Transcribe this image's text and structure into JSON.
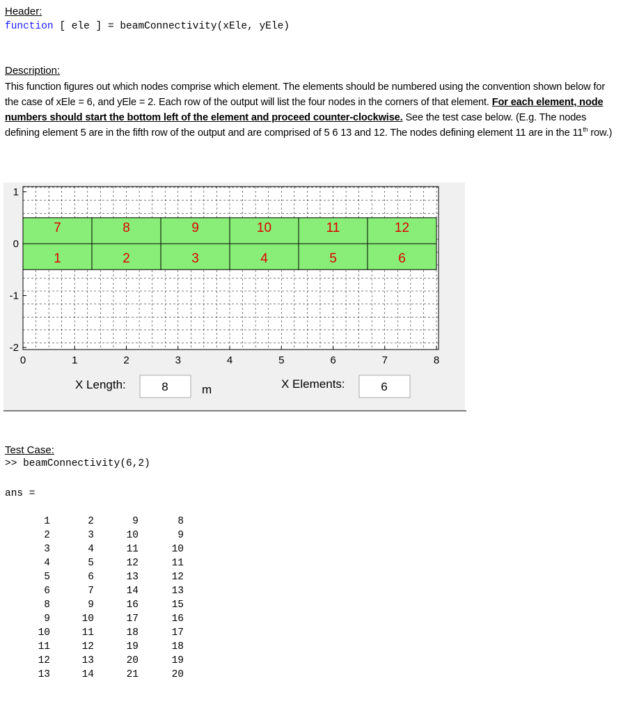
{
  "header": {
    "label": "Header:",
    "code_keyword": "function",
    "code_rest": "[ ele ] = beamConnectivity(xEle, yEle)"
  },
  "description": {
    "label": "Description:",
    "text_1": "This function figures out which nodes comprise which element.  The elements should be numbered using the convention shown below for the case of xEle = 6, and yEle = 2.  Each row of the output will list the four nodes in the corners of that element. ",
    "emphasis": "For each element, node numbers should start the bottom left of the element and proceed counter-clockwise.",
    "text_2": " See the test case below.  (E.g. The nodes defining element 5 are in the fifth row of the output and are comprised of 5 6 13 and 12.  The nodes defining element 11 are in the 11",
    "superscript": "th",
    "text_3": " row.)"
  },
  "figure": {
    "yticks": [
      1,
      0,
      -1,
      -2
    ],
    "xticks": [
      0,
      1,
      2,
      3,
      4,
      5,
      6,
      7,
      8
    ],
    "top_elements": [
      7,
      8,
      9,
      10,
      11,
      12
    ],
    "bottom_elements": [
      1,
      2,
      3,
      4,
      5,
      6
    ],
    "x_length_label": "X Length:",
    "x_length": 8,
    "unit": "m",
    "x_elements_label": "X Elements:",
    "x_elements": 6
  },
  "test_case": {
    "label": "Test Case:",
    "prompt": ">>",
    "command": "beamConnectivity(6,2)",
    "ans": "ans =",
    "rows": [
      [
        1,
        2,
        9,
        8
      ],
      [
        2,
        3,
        10,
        9
      ],
      [
        3,
        4,
        11,
        10
      ],
      [
        4,
        5,
        12,
        11
      ],
      [
        5,
        6,
        13,
        12
      ],
      [
        6,
        7,
        14,
        13
      ],
      [
        8,
        9,
        16,
        15
      ],
      [
        9,
        10,
        17,
        16
      ],
      [
        10,
        11,
        18,
        17
      ],
      [
        11,
        12,
        19,
        18
      ],
      [
        12,
        13,
        20,
        19
      ],
      [
        13,
        14,
        21,
        20
      ]
    ]
  }
}
